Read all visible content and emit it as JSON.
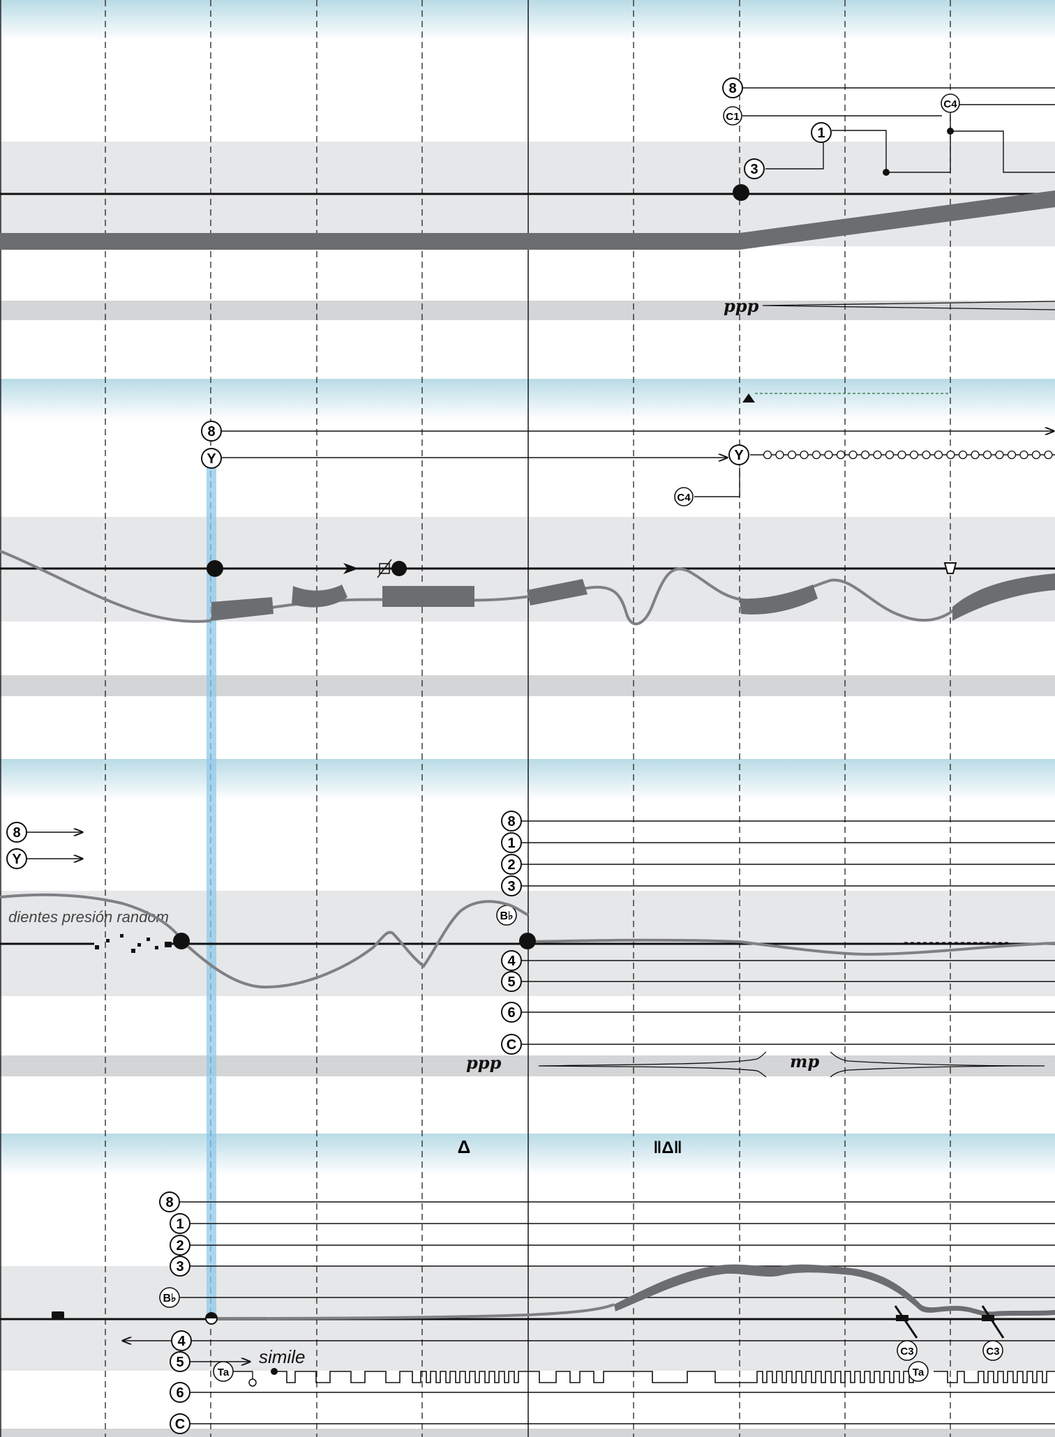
{
  "colors": {
    "band_gray": "#e6e7e9",
    "bottom_band_gray": "#d4d5d7",
    "top_gradient": "#b9dbe6",
    "curve_gray": "#7f8083",
    "thick_gray": "#6c6d70",
    "highlight_blue": "#8fc8ea",
    "ink": "#111111"
  },
  "systems": [
    {
      "keys": [
        "8",
        "C1",
        "1",
        "3",
        "C4"
      ],
      "dynamics": [
        "ppp"
      ]
    },
    {
      "keys": [
        "8",
        "Y",
        "Y",
        "C4"
      ]
    },
    {
      "keys": [
        "8",
        "Y",
        "8",
        "1",
        "2",
        "3",
        "B♭",
        "4",
        "5",
        "6",
        "C"
      ],
      "annotation": "dientes presión random",
      "dynamics": [
        "ppp",
        "mp"
      ]
    },
    {
      "keys": [
        "8",
        "1",
        "2",
        "3",
        "B♭",
        "4",
        "5",
        "Ta",
        "6",
        "C",
        "C3",
        "C3",
        "Ta"
      ],
      "annotation": "simile",
      "symbols": [
        "Δ",
        "‖Δ‖"
      ]
    }
  ]
}
